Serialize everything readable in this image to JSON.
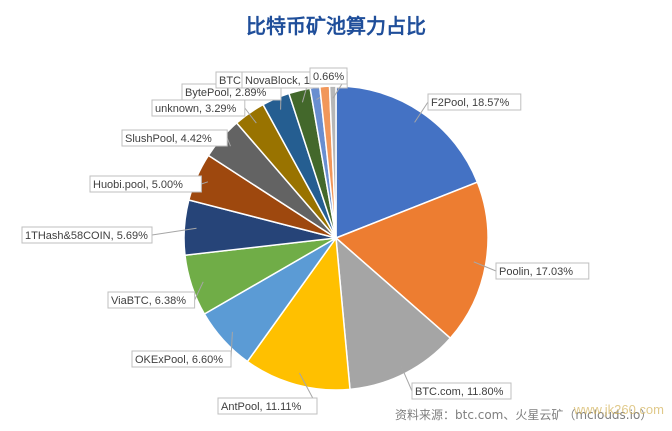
{
  "chart_data": {
    "type": "pie",
    "title": "比特币矿池算力占比",
    "slices": [
      {
        "label": "F2Pool",
        "value": 18.57,
        "pct": "18.57%",
        "color": "#4472c4"
      },
      {
        "label": "Poolin",
        "value": 17.03,
        "pct": "17.03%",
        "color": "#ed7d31"
      },
      {
        "label": "BTC.com",
        "value": 11.8,
        "pct": "11.80%",
        "color": "#a5a5a5"
      },
      {
        "label": "AntPool",
        "value": 11.11,
        "pct": "11.11%",
        "color": "#ffc000"
      },
      {
        "label": "OKExPool",
        "value": 6.6,
        "pct": "6.60%",
        "color": "#5b9bd5"
      },
      {
        "label": "ViaBTC",
        "value": 6.38,
        "pct": "6.38%",
        "color": "#70ad47"
      },
      {
        "label": "1THash&58COIN",
        "value": 5.69,
        "pct": "5.69%",
        "color": "#264478"
      },
      {
        "label": "Huobi.pool",
        "value": 5.0,
        "pct": "5.00%",
        "color": "#9e480e"
      },
      {
        "label": "SlushPool",
        "value": 4.42,
        "pct": "4.42%",
        "color": "#636363"
      },
      {
        "label": "unknown",
        "value": 3.29,
        "pct": "3.29%",
        "color": "#997300"
      },
      {
        "label": "BytePool",
        "value": 2.89,
        "pct": "2.89%",
        "color": "#255e91"
      },
      {
        "label": "BTC.TOP",
        "value": 2.23,
        "pct": "2.23%",
        "color": "#43682b"
      },
      {
        "label": "NovaBlock",
        "value": 1.0,
        "pct": "1.00%",
        "color": "#698ed0"
      },
      {
        "label": "",
        "value": 1.0,
        "pct": "",
        "color": "#f1975a"
      },
      {
        "label": "",
        "value": 0.66,
        "pct": "0.66%",
        "color": "#b7b7b7"
      }
    ]
  },
  "source": "资料来源：btc.com、火星云矿（mclouds.io）",
  "watermark": "www.jk260.com"
}
